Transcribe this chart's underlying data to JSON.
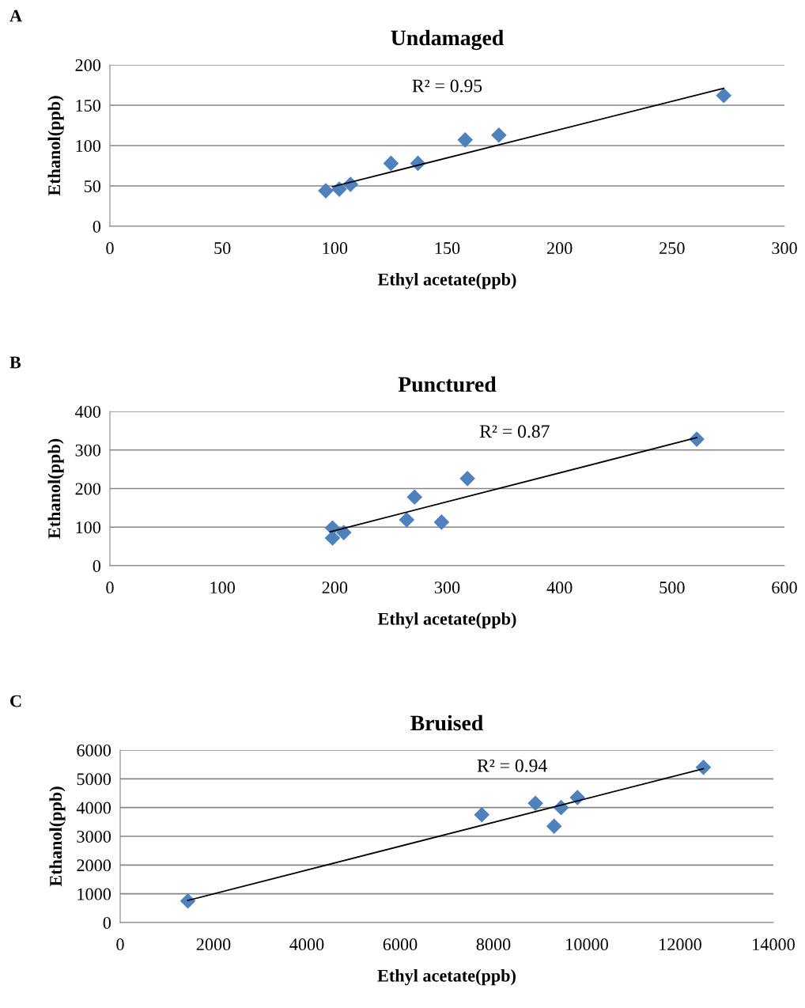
{
  "chart_data": [
    {
      "type": "scatter",
      "title": "Undamaged",
      "xlabel": "Ethyl acetate(ppb)",
      "ylabel": "Ethanol(ppb)",
      "annotations": [
        "A",
        "R² = 0.95"
      ],
      "grid": "y",
      "xlim": [
        0,
        300
      ],
      "xticks": [
        0,
        50,
        100,
        150,
        200,
        250,
        300
      ],
      "ylim": [
        0,
        200
      ],
      "yticks": [
        0,
        50,
        100,
        150,
        200
      ],
      "series": [
        {
          "color": "#4f81bd",
          "marker": "diamond",
          "x": [
            96,
            102,
            107,
            125,
            137,
            158,
            173,
            273
          ],
          "values": [
            44,
            46,
            52,
            78,
            78,
            107,
            113,
            162
          ]
        },
        {
          "type": "line",
          "marker": "none",
          "color": "#000000",
          "x": [
            99,
            273
          ],
          "values": [
            49,
            171
          ]
        }
      ]
    },
    {
      "type": "scatter",
      "title": "Punctured",
      "xlabel": "Ethyl acetate(ppb)",
      "ylabel": "Ethanol(ppb)",
      "annotations": [
        "B",
        "R² = 0.87"
      ],
      "grid": "y",
      "xlim": [
        0,
        600
      ],
      "xticks": [
        0,
        100,
        200,
        300,
        400,
        500,
        600
      ],
      "ylim": [
        0,
        400
      ],
      "yticks": [
        0,
        100,
        200,
        300,
        400
      ],
      "series": [
        {
          "color": "#4f81bd",
          "marker": "diamond",
          "x": [
            198,
            198,
            208,
            264,
            271,
            295,
            318,
            522
          ],
          "values": [
            98,
            72,
            86,
            119,
            178,
            113,
            226,
            328
          ]
        },
        {
          "type": "line",
          "marker": "none",
          "color": "#000000",
          "x": [
            196,
            522
          ],
          "values": [
            88,
            332
          ]
        }
      ]
    },
    {
      "type": "scatter",
      "title": "Bruised",
      "xlabel": "Ethyl acetate(ppb)",
      "ylabel": "Ethanol(ppb)",
      "annotations": [
        "C",
        "R² = 0.94"
      ],
      "grid": "y",
      "xlim": [
        0,
        14000
      ],
      "xticks": [
        0,
        2000,
        4000,
        6000,
        8000,
        10000,
        12000,
        14000
      ],
      "ylim": [
        0,
        6000
      ],
      "yticks": [
        0,
        1000,
        2000,
        3000,
        4000,
        5000,
        6000
      ],
      "series": [
        {
          "color": "#4f81bd",
          "marker": "diamond",
          "x": [
            1450,
            7750,
            8900,
            9300,
            9450,
            9800,
            12500
          ],
          "values": [
            750,
            3750,
            4150,
            3350,
            4000,
            4350,
            5400
          ]
        },
        {
          "type": "line",
          "marker": "none",
          "color": "#000000",
          "x": [
            1450,
            12500
          ],
          "values": [
            770,
            5350
          ]
        }
      ]
    }
  ]
}
